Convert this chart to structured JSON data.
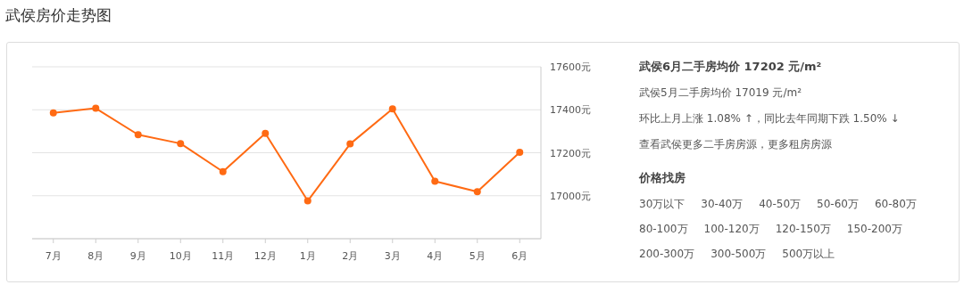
{
  "chart_data": [
    {
      "type": "line",
      "title": "武侯房价走势图",
      "categories": [
        "7月",
        "8月",
        "9月",
        "10月",
        "11月",
        "12月",
        "1月",
        "2月",
        "3月",
        "4月",
        "5月",
        "6月"
      ],
      "series": [
        {
          "color": "#ff6a13",
          "values": [
            17385,
            17407,
            17284,
            17243,
            17112,
            17290,
            16976,
            17241,
            17404,
            17067,
            17019,
            17202
          ]
        }
      ],
      "ylim": [
        16800,
        17600
      ],
      "yticks": [
        {
          "value": 16800,
          "label": null
        },
        {
          "value": 17000,
          "label": "17000元"
        },
        {
          "value": 17200,
          "label": "17200元"
        },
        {
          "value": 17400,
          "label": "17400元"
        },
        {
          "value": 17600,
          "label": "17600元"
        }
      ],
      "grid": "y",
      "marker": "circle",
      "line_style": "solid"
    },
    {
      "type": "other",
      "annotations": [
        "武侯6月二手房均价 17202 元/m²",
        "武侯5月二手房均价 17019 元/m²",
        "环比上月上涨 1.08% ↑，同比去年同期下跌 1.50% ↓",
        "查看武侯更多二手房房源，更多租房房源",
        "价格找房",
        "30万以下",
        "30-40万",
        "40-50万",
        "50-60万",
        "60-80万",
        "80-100万",
        "100-120万",
        "120-150万",
        "150-200万",
        "200-300万",
        "300-500万",
        "500万以上"
      ]
    }
  ]
}
